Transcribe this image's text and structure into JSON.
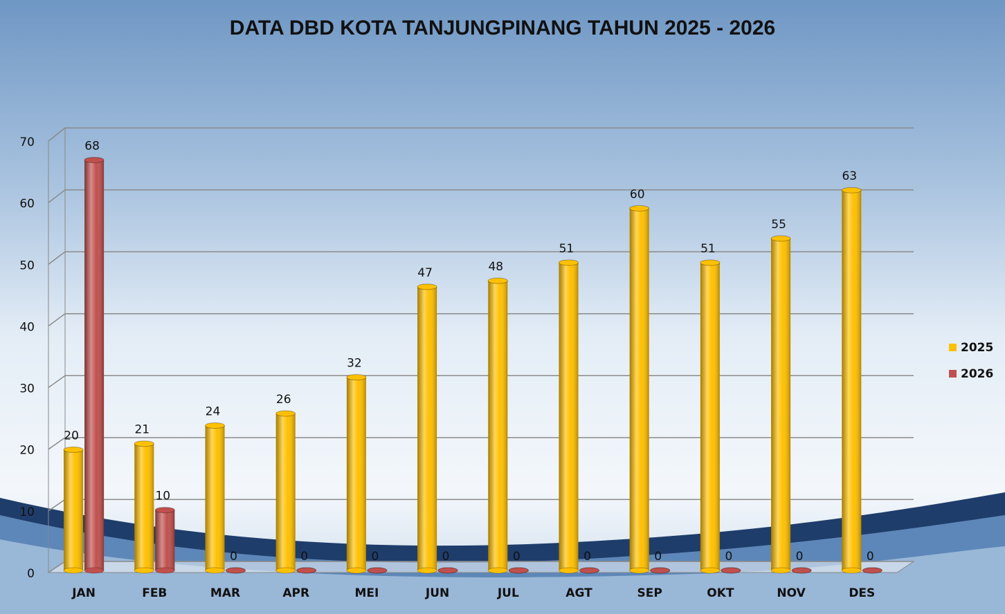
{
  "chart_data": {
    "type": "bar",
    "title": "DATA DBD KOTA TANJUNGPINANG TAHUN 2025 - 2026",
    "categories": [
      "JAN",
      "FEB",
      "MAR",
      "APR",
      "MEI",
      "JUN",
      "JUL",
      "AGT",
      "SEP",
      "OKT",
      "NOV",
      "DES"
    ],
    "series": [
      {
        "name": "2025",
        "color": "#FFC000",
        "values": [
          20,
          21,
          24,
          26,
          32,
          47,
          48,
          51,
          60,
          51,
          55,
          63
        ]
      },
      {
        "name": "2026",
        "color": "#C0504D",
        "values": [
          68,
          10,
          0,
          0,
          0,
          0,
          0,
          0,
          0,
          0,
          0,
          0
        ]
      }
    ],
    "ylim": [
      0,
      70
    ],
    "yticks": [
      0,
      10,
      20,
      30,
      40,
      50,
      60,
      70
    ],
    "grid": true,
    "legend": "right"
  }
}
